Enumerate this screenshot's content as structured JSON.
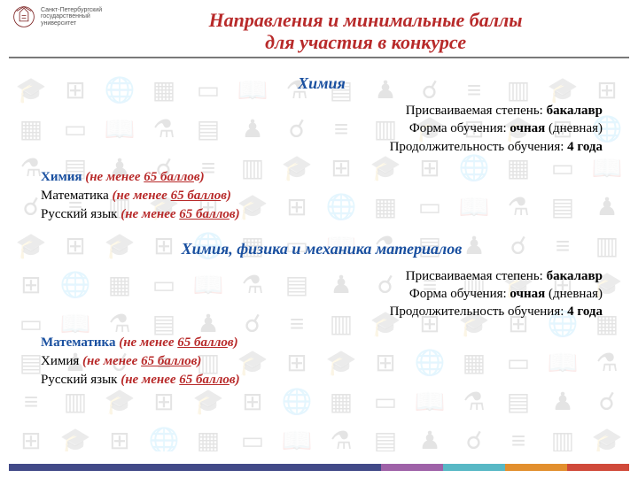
{
  "header": {
    "university_line1": "Санкт-Петербургский",
    "university_line2": "государственный",
    "university_line3": "университет",
    "title_line1": "Направления и минимальные баллы",
    "title_line2": "для участия в конкурсе"
  },
  "programs": [
    {
      "name": "Химия",
      "degree_label": "Присваиваемая степень: ",
      "degree_value": "бакалавр",
      "form_label": "Форма обучения: ",
      "form_value": "очная",
      "form_suffix": " (дневная)",
      "duration_label": "Продолжительность обучения: ",
      "duration_value": "4 года",
      "subjects": [
        {
          "name": "Химия",
          "blue": true,
          "min_pre": "(не менее ",
          "min_num": "65 балло",
          "min_suf": "в)"
        },
        {
          "name": "Математика",
          "blue": false,
          "min_pre": "(не менее ",
          "min_num": "65 балло",
          "min_suf": "в)"
        },
        {
          "name": "Русский язык",
          "blue": false,
          "min_pre": "(не менее ",
          "min_num": "65 балло",
          "min_suf": "в)"
        }
      ]
    },
    {
      "name": "Химия, физика и механика материалов",
      "degree_label": "Присваиваемая степень: ",
      "degree_value": "бакалавр",
      "form_label": "Форма обучения: ",
      "form_value": "очная",
      "form_suffix": " (дневная)",
      "duration_label": "Продолжительность обучения: ",
      "duration_value": "4 года",
      "subjects": [
        {
          "name": "Математика",
          "blue": true,
          "min_pre": "(не менее ",
          "min_num": "65 балло",
          "min_suf": "в)"
        },
        {
          "name": "Химия",
          "blue": false,
          "min_pre": "(не менее ",
          "min_num": "65 балло",
          "min_suf": "в)"
        },
        {
          "name": "Русский язык",
          "blue": false,
          "min_pre": "(не менее ",
          "min_num": "65 балло",
          "min_suf": "в)"
        }
      ]
    }
  ],
  "colors": {
    "accent_red": "#b82a2a",
    "accent_blue": "#1a50a0"
  },
  "bg_icon_set": [
    "🎓",
    "⊞",
    "🌐",
    "▦",
    "▭",
    "📖",
    "⚗",
    "▤",
    "♟",
    "☌",
    "≡",
    "▥",
    "🎓",
    "⊞"
  ]
}
